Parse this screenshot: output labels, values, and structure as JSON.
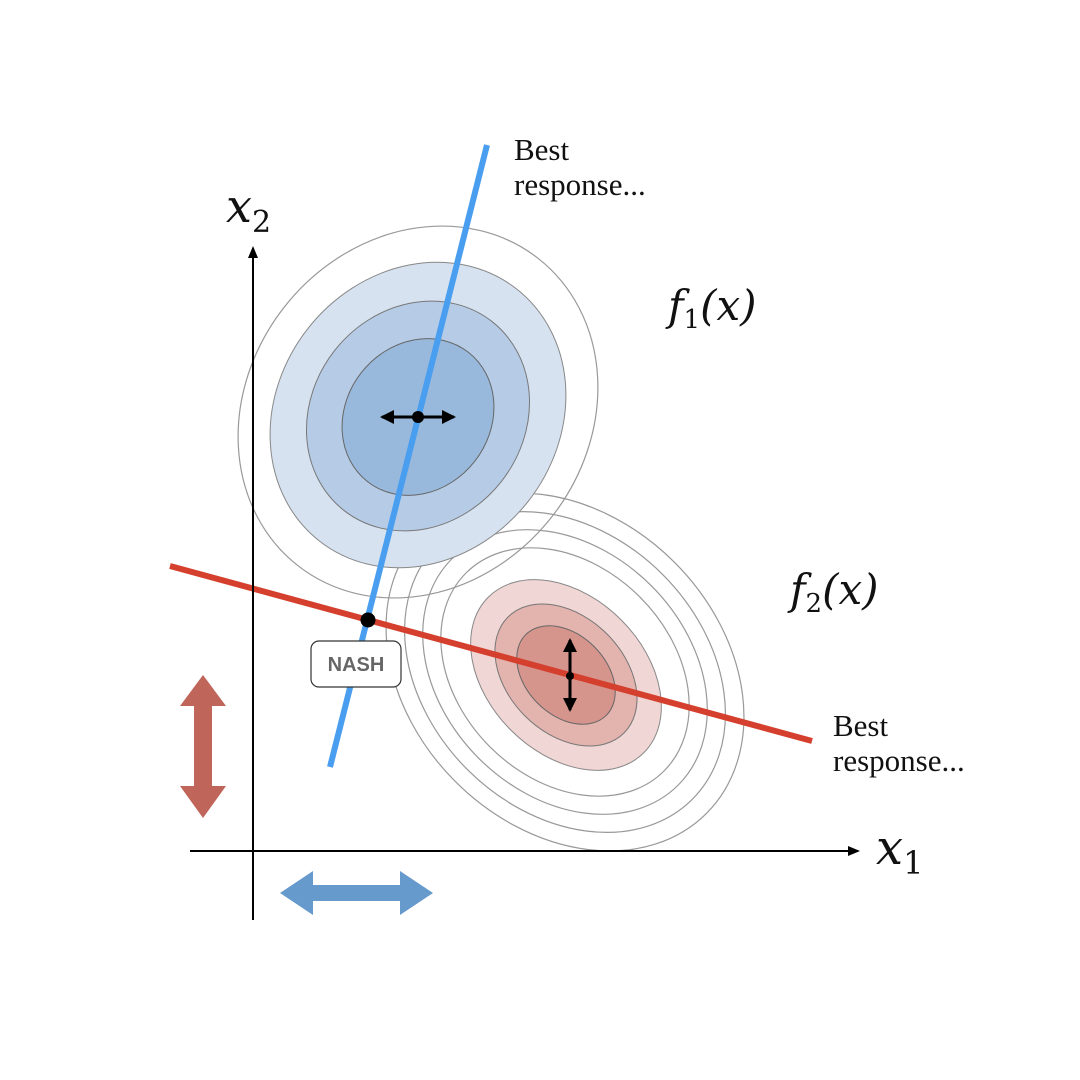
{
  "axes": {
    "x_label_var": "x",
    "x_label_sub": "1",
    "y_label_var": "x",
    "y_label_sub": "2"
  },
  "functions": {
    "f1": {
      "name": "f",
      "sub": "1",
      "arg": "(x)"
    },
    "f2": {
      "name": "f",
      "sub": "2",
      "arg": "(x)"
    }
  },
  "best_response_1": {
    "line1": "Best",
    "line2": "response..."
  },
  "best_response_2": {
    "line1": "Best",
    "line2": "response..."
  },
  "nash_label": "NASH",
  "colors": {
    "blue_line": "#4a9eef",
    "red_line": "#d43f2e",
    "blue_fill_1": "#d6e2f0",
    "blue_fill_2": "#b6cce6",
    "blue_fill_3": "#98b9dc",
    "red_fill_1": "#f0d6d4",
    "red_fill_2": "#e3b3ae",
    "red_fill_3": "#d5958d",
    "red_arrow": "#c0655a",
    "blue_arrow": "#6699cc"
  }
}
